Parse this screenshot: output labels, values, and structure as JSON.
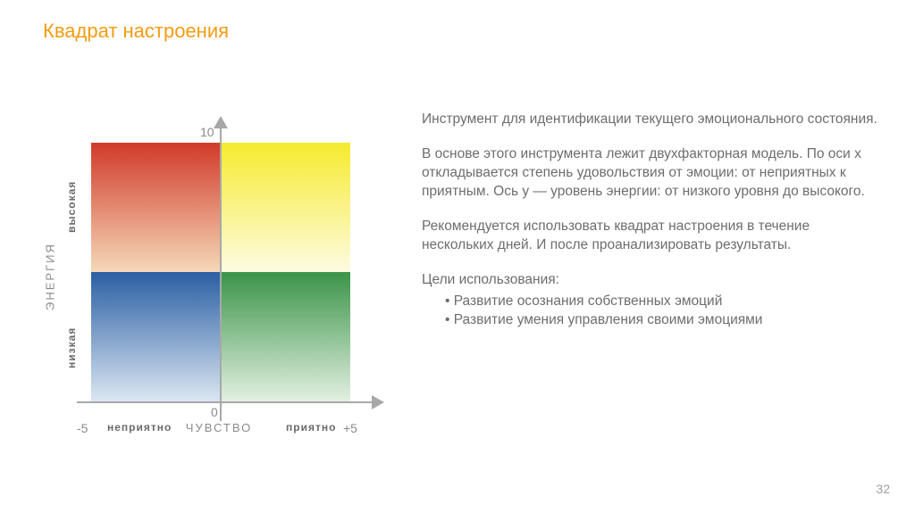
{
  "title": {
    "text": "Квадрат настроения",
    "color": "#f39c12"
  },
  "page_number": "32",
  "page_number_color": "#9e9e9e",
  "text_color": "#6d6d6d",
  "y_axis": {
    "title": "ЭНЕРГИЯ",
    "high_label": "высокая",
    "low_label": "низкая",
    "label_color": "#8a8a8a",
    "sub_color": "#6a6a6a",
    "max_tick": "10",
    "zero_tick": "0",
    "tick_color": "#8a8a8a"
  },
  "x_axis": {
    "title": "ЧУВСТВО",
    "left_label": "неприятно",
    "right_label": "приятно",
    "label_color": "#8a8a8a",
    "sub_color": "#6a6a6a",
    "min_tick": "-5",
    "max_tick": "+5",
    "tick_color": "#8a8a8a"
  },
  "quadrants": {
    "tl": {
      "top_color": "#d13a2a",
      "bottom_color": "#f5d9b8"
    },
    "tr": {
      "top_color": "#f6ea2e",
      "bottom_color": "#fdfbe2"
    },
    "bl": {
      "top_color": "#2a5fa3",
      "bottom_color": "#dbe6f2"
    },
    "br": {
      "top_color": "#3b9447",
      "bottom_color": "#e2f0e2"
    }
  },
  "axis_line_color": "#a8a8a8",
  "paragraphs": {
    "p1": "Инструмент для идентификации текущего эмоционального состояния.",
    "p2": "В основе этого инструмента лежит двухфакторная модель. По оси x откладывается степень удовольствия от эмоции: от неприятных к приятным. Ось y — уровень энергии: от низкого уровня до высокого.",
    "p3": "Рекомендуется использовать квадрат настроения в течение нескольких дней. И после проанализировать результаты.",
    "p4": "Цели использования:"
  },
  "bullets": {
    "b1": "Развитие осознания собственных эмоций",
    "b2": "Развитие умения управления своими эмоциями"
  }
}
